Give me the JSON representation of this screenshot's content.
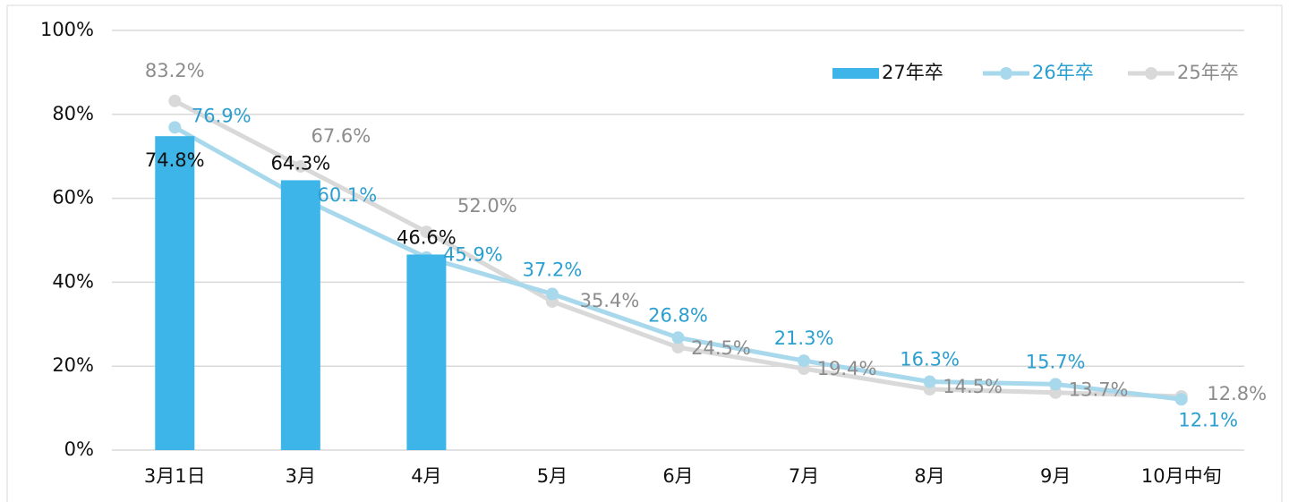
{
  "chart_data": {
    "type": "bar_line",
    "categories": [
      "3月1日",
      "3月",
      "4月",
      "5月",
      "6月",
      "7月",
      "8月",
      "9月",
      "10月中旬"
    ],
    "series": [
      {
        "name": "27年卒",
        "type": "bar",
        "color": "#3db5e8",
        "label_color": "#111111",
        "values": [
          74.8,
          64.3,
          46.6,
          null,
          null,
          null,
          null,
          null,
          null
        ],
        "value_labels": [
          "74.8%",
          "64.3%",
          "46.6%",
          null,
          null,
          null,
          null,
          null,
          null
        ]
      },
      {
        "name": "26年卒",
        "type": "line",
        "color": "#a8d8ec",
        "label_color": "#2a9fd0",
        "values": [
          76.9,
          60.1,
          45.9,
          37.2,
          26.8,
          21.3,
          16.3,
          15.7,
          12.1
        ],
        "value_labels": [
          "76.9%",
          "60.1%",
          "45.9%",
          "37.2%",
          "26.8%",
          "21.3%",
          "16.3%",
          "15.7%",
          "12.1%"
        ]
      },
      {
        "name": "25年卒",
        "type": "line",
        "color": "#d9d9d9",
        "label_color": "#8c8c8c",
        "values": [
          83.2,
          67.6,
          52.0,
          35.4,
          24.5,
          19.4,
          14.5,
          13.7,
          12.8
        ],
        "value_labels": [
          "83.2%",
          "67.6%",
          "52.0%",
          "35.4%",
          "24.5%",
          "19.4%",
          "14.5%",
          "13.7%",
          "12.8%"
        ]
      }
    ],
    "ylim": [
      0,
      100
    ],
    "yticks": [
      {
        "value": 0,
        "label": "0%"
      },
      {
        "value": 20,
        "label": "20%"
      },
      {
        "value": 40,
        "label": "40%"
      },
      {
        "value": 60,
        "label": "60%"
      },
      {
        "value": 80,
        "label": "80%"
      },
      {
        "value": 100,
        "label": "100%"
      }
    ],
    "grid": true,
    "legend": "top-right"
  }
}
